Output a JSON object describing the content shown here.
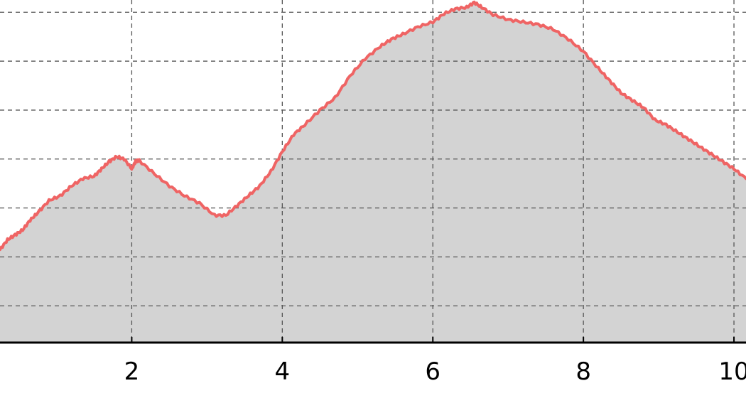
{
  "chart_data": {
    "type": "area",
    "title": "",
    "xlabel": "",
    "ylabel": "",
    "xlim": [
      0.25,
      10.16
    ],
    "ylim": [
      0,
      7
    ],
    "grid": true,
    "x_ticks": [
      2,
      4,
      6,
      8,
      10
    ],
    "x_tick_labels": [
      "2",
      "4",
      "6",
      "8",
      "10"
    ],
    "y_gridlines": [
      0.75,
      1.75,
      2.75,
      3.75,
      4.75,
      5.75,
      6.75
    ],
    "series": [
      {
        "line_color": "#ef6464",
        "fill_color": "#d3d3d3",
        "x": [
          0.25,
          0.35,
          0.45,
          0.55,
          0.65,
          0.75,
          0.9,
          1.05,
          1.2,
          1.35,
          1.5,
          1.6,
          1.7,
          1.8,
          1.9,
          2.0,
          2.05,
          2.1,
          2.3,
          2.5,
          2.7,
          2.9,
          3.1,
          3.25,
          3.4,
          3.55,
          3.7,
          3.85,
          4.0,
          4.15,
          4.3,
          4.5,
          4.7,
          4.9,
          5.1,
          5.3,
          5.45,
          5.6,
          5.8,
          6.0,
          6.15,
          6.3,
          6.45,
          6.55,
          6.65,
          6.8,
          7.0,
          7.2,
          7.4,
          7.6,
          7.8,
          8.0,
          8.2,
          8.35,
          8.5,
          8.65,
          8.8,
          8.95,
          9.1,
          9.25,
          9.4,
          9.55,
          9.7,
          9.85,
          10.0,
          10.16
        ],
        "y": [
          1.9,
          2.1,
          2.2,
          2.3,
          2.5,
          2.65,
          2.9,
          3.0,
          3.2,
          3.35,
          3.4,
          3.55,
          3.7,
          3.8,
          3.75,
          3.55,
          3.7,
          3.72,
          3.45,
          3.2,
          3.0,
          2.85,
          2.6,
          2.6,
          2.8,
          3.0,
          3.2,
          3.5,
          3.9,
          4.25,
          4.45,
          4.75,
          5.0,
          5.45,
          5.8,
          6.05,
          6.2,
          6.3,
          6.45,
          6.55,
          6.72,
          6.82,
          6.85,
          6.95,
          6.85,
          6.7,
          6.6,
          6.55,
          6.5,
          6.4,
          6.2,
          5.95,
          5.6,
          5.35,
          5.1,
          4.95,
          4.8,
          4.55,
          4.45,
          4.3,
          4.15,
          4.0,
          3.85,
          3.7,
          3.55,
          3.35
        ]
      }
    ]
  }
}
